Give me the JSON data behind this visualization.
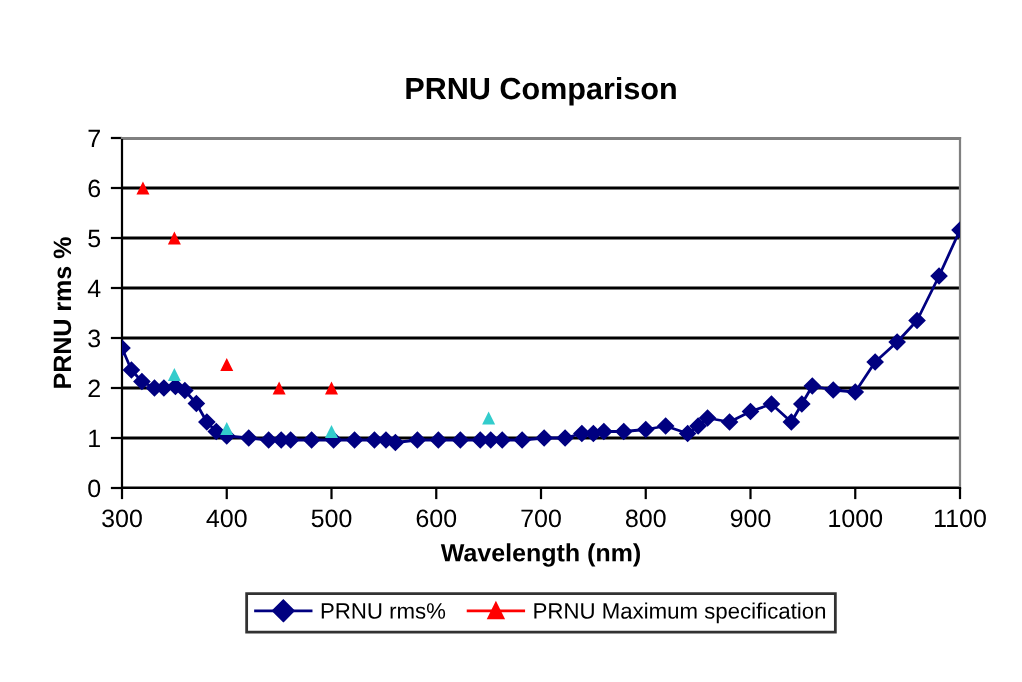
{
  "chart_data": {
    "type": "line",
    "title": "PRNU Comparison",
    "xlabel": "Wavelength (nm)",
    "ylabel": "PRNU rms %",
    "xlim": [
      300,
      1100
    ],
    "xticks": [
      300,
      400,
      500,
      600,
      700,
      800,
      900,
      1000,
      1100
    ],
    "ylim": [
      0,
      7
    ],
    "yticks": [
      0,
      1,
      2,
      3,
      4,
      5,
      6,
      7
    ],
    "grid": "y",
    "legend": "bottom",
    "series": [
      {
        "name": "PRNU rms%",
        "marker": "diamond",
        "color": "#000080",
        "x": [
          300,
          309,
          319,
          331,
          340,
          351,
          360,
          371,
          381,
          390,
          400,
          421,
          440,
          452,
          461,
          481,
          502,
          522,
          541,
          552,
          561,
          582,
          602,
          623,
          642,
          652,
          663,
          682,
          703,
          723,
          739,
          750,
          760,
          779,
          800,
          819,
          840,
          850,
          859,
          880,
          900,
          920,
          939,
          949,
          959,
          979,
          1000,
          1019,
          1040,
          1059,
          1080,
          1100
        ],
        "values": [
          2.8,
          2.36,
          2.13,
          2.0,
          2.0,
          2.03,
          1.95,
          1.69,
          1.32,
          1.13,
          1.04,
          1.0,
          0.96,
          0.96,
          0.96,
          0.96,
          0.96,
          0.96,
          0.96,
          0.96,
          0.91,
          0.96,
          0.96,
          0.96,
          0.96,
          0.96,
          0.96,
          0.96,
          1.0,
          1.0,
          1.09,
          1.09,
          1.13,
          1.13,
          1.17,
          1.24,
          1.09,
          1.24,
          1.4,
          1.32,
          1.53,
          1.68,
          1.32,
          1.68,
          2.04,
          1.96,
          1.92,
          2.52,
          2.92,
          3.35,
          4.24,
          5.16
        ]
      },
      {
        "name": "PRNU Maximum specification",
        "type": "scatter",
        "marker": "triangle",
        "color": "#ff0000",
        "x": [
          320,
          350,
          400,
          450,
          500
        ],
        "values": [
          6,
          5,
          2.47,
          2,
          2
        ]
      },
      {
        "type": "scatter",
        "marker": "triangle",
        "color": "#33cccc",
        "x": [
          350,
          400,
          500,
          650
        ],
        "values": [
          2.27,
          1.19,
          1.13,
          1.4
        ]
      }
    ]
  }
}
